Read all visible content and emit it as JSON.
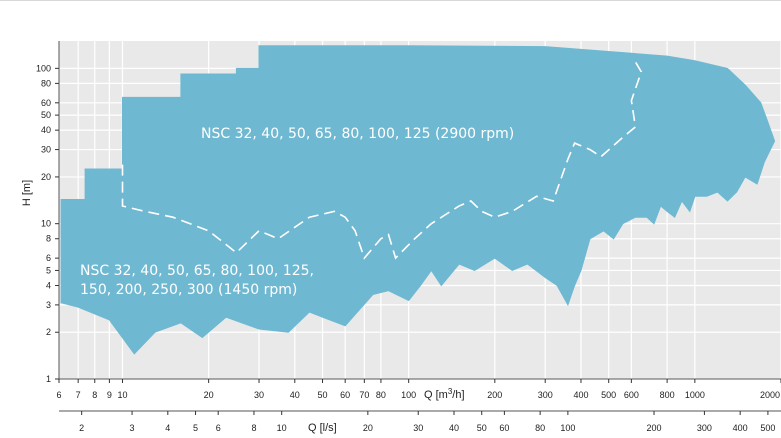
{
  "chart_data": {
    "type": "area",
    "title": "",
    "x_axis": {
      "label": "Q [m³/h]",
      "scale": "log",
      "range": [
        6,
        2000
      ],
      "tick_labels": [
        "6",
        "7",
        "8",
        "9",
        "10",
        "20",
        "30",
        "40",
        "50",
        "60",
        "70",
        "80",
        "100",
        "200",
        "300",
        "400",
        "500",
        "600",
        "800",
        "1000",
        "2000"
      ]
    },
    "x2_axis": {
      "label": "Q [l/s]",
      "scale": "log",
      "tick_labels": [
        "2",
        "3",
        "4",
        "5",
        "6",
        "8",
        "10",
        "20",
        "30",
        "40",
        "50",
        "60",
        "80",
        "100",
        "200",
        "300",
        "400",
        "500"
      ]
    },
    "y_axis": {
      "label": "H [m]",
      "scale": "log",
      "range": [
        1,
        150
      ],
      "tick_labels": [
        "1",
        "2",
        "3",
        "4",
        "5",
        "6",
        "8",
        "10",
        "20",
        "30",
        "40",
        "50",
        "60",
        "80",
        "100"
      ]
    },
    "grid": true,
    "series": [
      {
        "name": "NSC 32, 40, 50, 65, 80, 100, 125 (2900 rpm)",
        "color": "#6fb8d1",
        "outline": [
          [
            10,
            65
          ],
          [
            16,
            65
          ],
          [
            16,
            92
          ],
          [
            25,
            92
          ],
          [
            25,
            100
          ],
          [
            30,
            100
          ],
          [
            30,
            140
          ],
          [
            100,
            140
          ],
          [
            300,
            138
          ],
          [
            600,
            125
          ],
          [
            800,
            120
          ],
          [
            1000,
            112
          ],
          [
            1300,
            100
          ],
          [
            1500,
            78
          ],
          [
            1700,
            60
          ],
          [
            1800,
            45
          ],
          [
            1900,
            34
          ],
          [
            1750,
            25
          ],
          [
            1650,
            18
          ],
          [
            1500,
            20
          ],
          [
            1400,
            16
          ],
          [
            1300,
            14
          ],
          [
            1200,
            16
          ],
          [
            1100,
            15
          ],
          [
            1000,
            15
          ],
          [
            960,
            12
          ],
          [
            900,
            14
          ],
          [
            850,
            11
          ],
          [
            800,
            12
          ],
          [
            760,
            13
          ],
          [
            720,
            10
          ],
          [
            680,
            11
          ],
          [
            620,
            11
          ],
          [
            560,
            10
          ],
          [
            520,
            8
          ],
          [
            480,
            9
          ],
          [
            430,
            8
          ],
          [
            400,
            9
          ],
          [
            360,
            8
          ],
          [
            320,
            7
          ],
          [
            300,
            7.5
          ],
          [
            270,
            6
          ],
          [
            230,
            7.5
          ],
          [
            200,
            6
          ],
          [
            170,
            8
          ],
          [
            140,
            7
          ],
          [
            120,
            10
          ],
          [
            100,
            7
          ],
          [
            85,
            8
          ],
          [
            70,
            6
          ],
          [
            60,
            9
          ],
          [
            45,
            7
          ],
          [
            40,
            9
          ],
          [
            35,
            8
          ],
          [
            28,
            7
          ],
          [
            25,
            6.5
          ],
          [
            20,
            9
          ],
          [
            15,
            11
          ],
          [
            12,
            12
          ],
          [
            10,
            13
          ]
        ],
        "dashed_boundary": [
          [
            10,
            24
          ],
          [
            10,
            13
          ],
          [
            12,
            12
          ],
          [
            15,
            11
          ],
          [
            20,
            9
          ],
          [
            25,
            6.5
          ],
          [
            30,
            9
          ],
          [
            35,
            8
          ],
          [
            45,
            11
          ],
          [
            55,
            12
          ],
          [
            60,
            11
          ],
          [
            65,
            9
          ],
          [
            70,
            6
          ],
          [
            80,
            8
          ],
          [
            85,
            8.5
          ],
          [
            90,
            6
          ],
          [
            105,
            8
          ],
          [
            120,
            10
          ],
          [
            150,
            13
          ],
          [
            165,
            14
          ],
          [
            180,
            12
          ],
          [
            200,
            11
          ],
          [
            230,
            12
          ],
          [
            280,
            15
          ],
          [
            320,
            14
          ],
          [
            360,
            26
          ],
          [
            380,
            33
          ],
          [
            430,
            30
          ],
          [
            470,
            27
          ],
          [
            560,
            36
          ],
          [
            620,
            42
          ],
          [
            600,
            62
          ],
          [
            650,
            95
          ],
          [
            620,
            110
          ]
        ]
      },
      {
        "name": "NSC 32, 40, 50, 65, 80, 100, 125, 150, 200, 250, 300 (1450 rpm)",
        "color": "#6fb8d1",
        "outline": [
          [
            6.1,
            3.1
          ],
          [
            6.1,
            14.3
          ],
          [
            7.4,
            14.3
          ],
          [
            7.4,
            22.5
          ],
          [
            10,
            22.5
          ],
          [
            10,
            13
          ],
          [
            12,
            12
          ],
          [
            15,
            11
          ],
          [
            20,
            9
          ],
          [
            25,
            6.5
          ],
          [
            28,
            7
          ],
          [
            35,
            8
          ],
          [
            40,
            9
          ],
          [
            45,
            7
          ],
          [
            60,
            9
          ],
          [
            70,
            6
          ],
          [
            85,
            8
          ],
          [
            100,
            7
          ],
          [
            120,
            10
          ],
          [
            140,
            7
          ],
          [
            170,
            8
          ],
          [
            200,
            6
          ],
          [
            230,
            7.5
          ],
          [
            270,
            6
          ],
          [
            300,
            7.5
          ],
          [
            320,
            7
          ],
          [
            360,
            8
          ],
          [
            400,
            9
          ],
          [
            430,
            8
          ],
          [
            400,
            5
          ],
          [
            380,
            4
          ],
          [
            360,
            3
          ],
          [
            330,
            4
          ],
          [
            300,
            4.5
          ],
          [
            260,
            5.5
          ],
          [
            230,
            5
          ],
          [
            200,
            6
          ],
          [
            170,
            5
          ],
          [
            150,
            5.5
          ],
          [
            130,
            4
          ],
          [
            120,
            5
          ],
          [
            110,
            4
          ],
          [
            100,
            3.2
          ],
          [
            85,
            3.7
          ],
          [
            75,
            3.5
          ],
          [
            60,
            2.2
          ],
          [
            50,
            2.5
          ],
          [
            45,
            2.7
          ],
          [
            38,
            2.0
          ],
          [
            30,
            2.1
          ],
          [
            23,
            2.5
          ],
          [
            19,
            1.85
          ],
          [
            16,
            2.3
          ],
          [
            13,
            2.0
          ],
          [
            11,
            1.45
          ],
          [
            9,
            2.4
          ],
          [
            7,
            2.9
          ]
        ]
      }
    ],
    "annotations": [
      {
        "text": "NSC 32, 40, 50, 65, 80, 100, 125 (2900 rpm)"
      },
      {
        "text": "NSC 32, 40, 50, 65, 80, 100, 125,"
      },
      {
        "text": "150, 200, 250, 300 (1450 rpm)"
      }
    ]
  }
}
